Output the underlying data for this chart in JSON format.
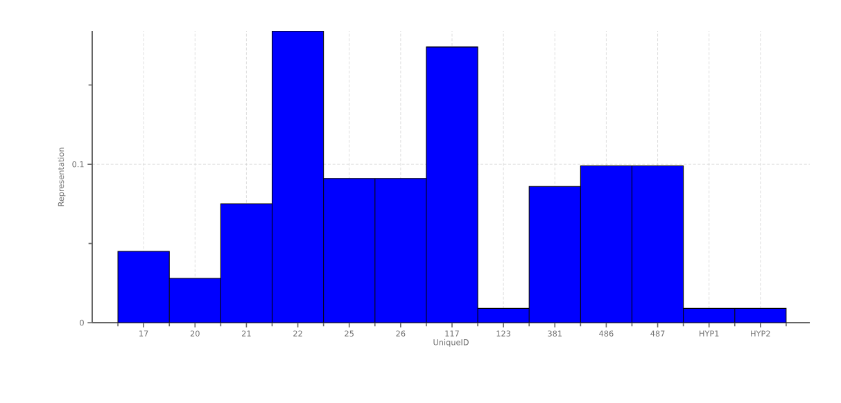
{
  "chart_data": {
    "type": "bar",
    "xlabel": "UniqueID",
    "ylabel": "Representation",
    "categories": [
      "17",
      "20",
      "21",
      "22",
      "25",
      "26",
      "117",
      "123",
      "381",
      "486",
      "487",
      "HYP1",
      "HYP2"
    ],
    "values": [
      0.045,
      0.028,
      0.075,
      0.184,
      0.091,
      0.091,
      0.174,
      0.009,
      0.086,
      0.099,
      0.099,
      0.009,
      0.009
    ],
    "color": "#0000ff",
    "ylim": [
      0,
      0.184
    ],
    "yticks": [
      0,
      {
        "value": 0.05,
        "label": null
      },
      0.1,
      {
        "value": 0.15,
        "label": null
      }
    ],
    "grid": true
  }
}
